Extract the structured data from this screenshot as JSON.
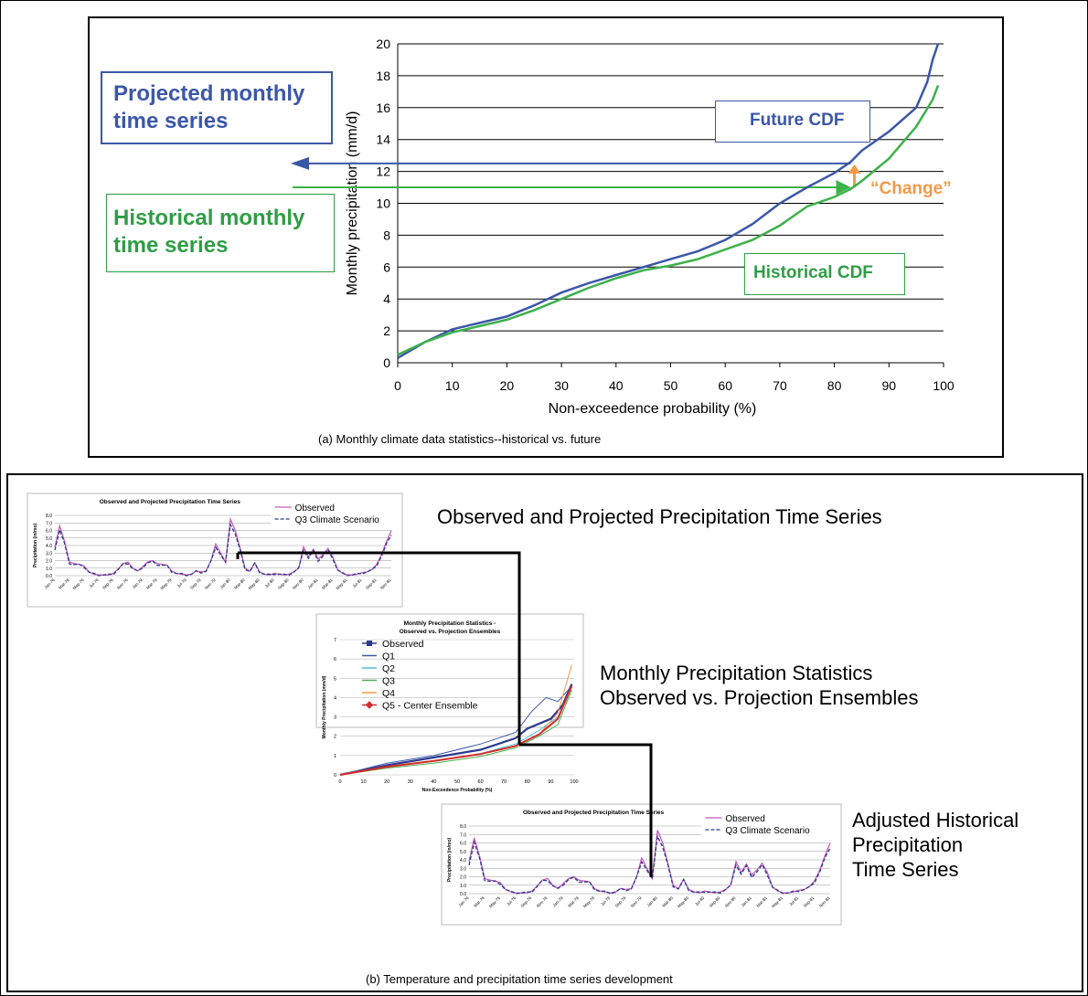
{
  "panel_a": {
    "caption": "(a) Monthly climate data statistics--historical vs. future",
    "projected_label": [
      "Projected monthly",
      "time series"
    ],
    "historical_label": [
      "Historical monthly",
      "time series"
    ],
    "future_cdf_label": "Future CDF",
    "historical_cdf_label": "Historical CDF",
    "change_label": "“Change”",
    "colors": {
      "future": "#3b57a8",
      "historical": "#3db14a",
      "change": "#f39a4a"
    }
  },
  "panel_b": {
    "caption": "(b) Temperature and precipitation time series development",
    "label_top": "Observed and Projected Precipitation Time Series",
    "label_middle": [
      "Monthly Precipitation Statistics",
      "Observed vs. Projection Ensembles"
    ],
    "label_bottom": [
      "Adjusted Historical",
      "Precipitation",
      "Time Series"
    ],
    "mini_ts_title": "Observed and Projected Precipitation Time Series",
    "mini_ts_ylabel": "Precipitation (in/mo)",
    "mini_ts_legend": [
      "Observed",
      "Q3 Climate Scenario"
    ],
    "mini_ts_xticks": [
      "Jan-76",
      "Mar-76",
      "May-76",
      "Jul-76",
      "Sep-76",
      "Nov-76",
      "Jan-79",
      "Mar-79",
      "May-79",
      "Jul-79",
      "Sep-79",
      "Nov-79",
      "Jan-80",
      "Mar-80",
      "May-80",
      "Jul-80",
      "Sep-80",
      "Nov-80",
      "Jan-81",
      "Mar-81",
      "May-81",
      "Jul-81",
      "Sep-81",
      "Nov-81"
    ],
    "mini_ts_yticks": [
      "0.0",
      "1.0",
      "2.0",
      "3.0",
      "4.0",
      "5.0",
      "6.0",
      "7.0",
      "8.0"
    ],
    "mini_cdf_title": [
      "Monthly Precipitation Statistics -",
      "Observed vs. Projection Ensembles"
    ],
    "mini_cdf_ylabel": "Monthly Precipitation (mm/d)",
    "mini_cdf_xlabel": "Non-Exceedence Probability (%)",
    "mini_cdf_legend": [
      "Observed",
      "Q1",
      "Q2",
      "Q3",
      "Q4",
      "Q5 - Center Ensemble"
    ],
    "mini_cdf_xticks": [
      "0",
      "10",
      "20",
      "30",
      "40",
      "50",
      "60",
      "70",
      "80",
      "90",
      "100"
    ],
    "mini_cdf_yticks": [
      "0",
      "1",
      "2",
      "3",
      "4",
      "5",
      "6",
      "7"
    ]
  },
  "chart_data": [
    {
      "type": "line",
      "title": "",
      "xlabel": "Non-exceedence probability (%)",
      "ylabel": "Monthly precipitation (mm/d)",
      "xlim": [
        0,
        100
      ],
      "ylim": [
        0,
        20
      ],
      "xticks": [
        0,
        10,
        20,
        30,
        40,
        50,
        60,
        70,
        80,
        90,
        100
      ],
      "yticks": [
        0,
        2,
        4,
        6,
        8,
        10,
        12,
        14,
        16,
        18,
        20
      ],
      "grid": "horizontal",
      "series": [
        {
          "name": "Future CDF",
          "color": "#3b57a8",
          "x": [
            0,
            5,
            10,
            15,
            20,
            25,
            30,
            35,
            40,
            45,
            50,
            55,
            60,
            65,
            70,
            75,
            80,
            83,
            85,
            90,
            95,
            97,
            98,
            99
          ],
          "y": [
            0.3,
            1.3,
            2.1,
            2.5,
            2.9,
            3.6,
            4.4,
            5.0,
            5.5,
            6.0,
            6.5,
            7.0,
            7.7,
            8.7,
            10.0,
            11.0,
            11.9,
            12.6,
            13.3,
            14.5,
            16.0,
            17.6,
            19.0,
            20.0
          ]
        },
        {
          "name": "Historical CDF",
          "color": "#3db14a",
          "x": [
            0,
            5,
            10,
            15,
            20,
            25,
            30,
            35,
            40,
            45,
            50,
            55,
            60,
            65,
            70,
            75,
            80,
            83,
            85,
            90,
            95,
            98,
            99
          ],
          "y": [
            0.5,
            1.3,
            1.9,
            2.3,
            2.7,
            3.3,
            4.0,
            4.7,
            5.3,
            5.8,
            6.1,
            6.5,
            7.1,
            7.7,
            8.6,
            9.8,
            10.4,
            10.9,
            11.4,
            12.8,
            14.8,
            16.5,
            17.4
          ]
        }
      ],
      "annotations": {
        "projected_level": 12.5,
        "historical_level": 11.0,
        "change_at_x": 83
      }
    }
  ]
}
